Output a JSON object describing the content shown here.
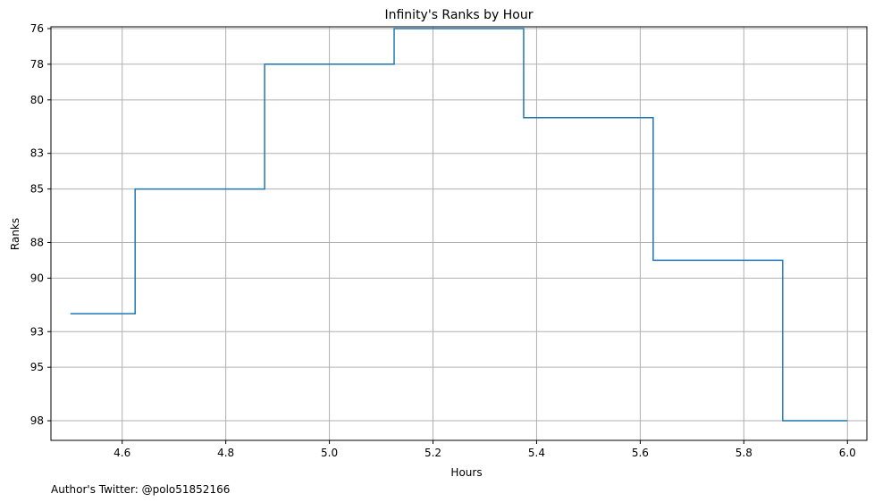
{
  "chart_data": {
    "type": "line",
    "step": "mid",
    "title": "Infinity's Ranks by Hour",
    "xlabel": "Hours",
    "ylabel": "Ranks",
    "xlim": [
      4.4625,
      6.0375
    ],
    "ylim": [
      99.1,
      75.9
    ],
    "y_inverted": true,
    "grid": true,
    "x_ticks": [
      4.6,
      4.8,
      5.0,
      5.2,
      5.4,
      5.6,
      5.8,
      6.0
    ],
    "x_tick_labels": [
      "4.6",
      "4.8",
      "5.0",
      "5.2",
      "5.4",
      "5.6",
      "5.8",
      "6.0"
    ],
    "y_ticks": [
      76,
      78,
      80,
      83,
      85,
      88,
      90,
      93,
      95,
      98
    ],
    "y_tick_labels": [
      "76",
      "78",
      "80",
      "83",
      "85",
      "88",
      "90",
      "93",
      "95",
      "98"
    ],
    "series": [
      {
        "color": "#1f77b4",
        "x": [
          4.5,
          4.75,
          5.0,
          5.25,
          5.5,
          5.75,
          6.0
        ],
        "y": [
          92,
          85,
          78,
          76,
          81,
          89,
          98
        ]
      }
    ]
  },
  "footer": {
    "text": "Author's Twitter: @polo51852166"
  }
}
